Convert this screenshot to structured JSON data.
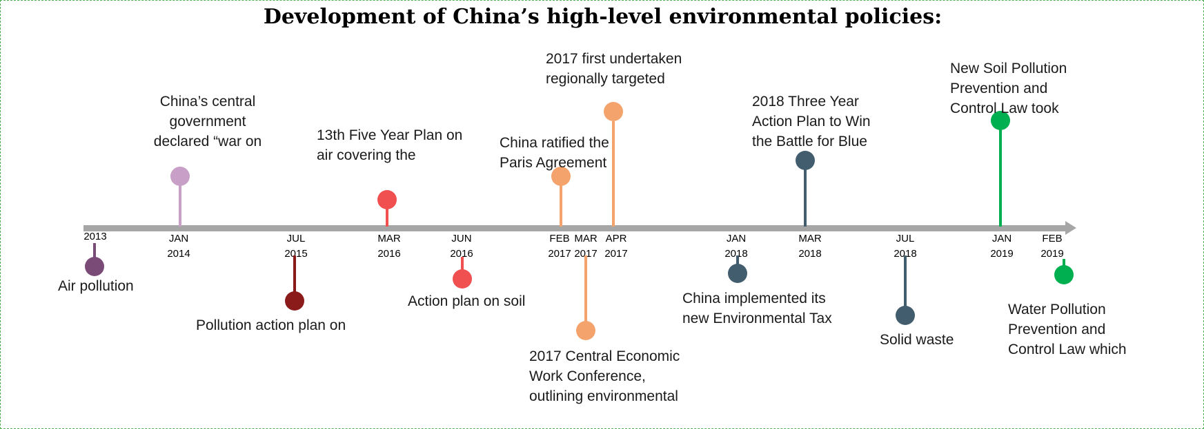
{
  "title": "Development of China’s high-level environmental policies:",
  "colors": {
    "axis": "#a6a6a6",
    "purple_dark": "#7b4b78",
    "lilac": "#c89fc6",
    "maroon": "#8b1b1b",
    "red": "#f05050",
    "orange": "#f4a36c",
    "slate": "#415d6e",
    "green": "#00b050"
  },
  "ticks": [
    {
      "month": "",
      "year": "2013"
    },
    {
      "month": "JAN",
      "year": "2014"
    },
    {
      "month": "JUL",
      "year": "2015"
    },
    {
      "month": "MAR",
      "year": "2016"
    },
    {
      "month": "JUN",
      "year": "2016"
    },
    {
      "month": "FEB",
      "year": "2017"
    },
    {
      "month": "MAR",
      "year": "2017"
    },
    {
      "month": "APR",
      "year": "2017"
    },
    {
      "month": "JAN",
      "year": "2018"
    },
    {
      "month": "MAR",
      "year": "2018"
    },
    {
      "month": "JUL",
      "year": "2018"
    },
    {
      "month": "JAN",
      "year": "2019"
    },
    {
      "month": "FEB",
      "year": "2019"
    }
  ],
  "events": {
    "air_pollution": {
      "lines": [
        "Air pollution"
      ]
    },
    "war_on_pollution": {
      "lines": [
        "China’s central",
        "government",
        "declared “war on"
      ]
    },
    "pollution_action_plan": {
      "lines": [
        "Pollution action plan on"
      ]
    },
    "five_year_plan": {
      "lines": [
        "13th Five Year Plan on",
        "air  covering the"
      ]
    },
    "soil_action_plan": {
      "lines": [
        "Action plan on soil"
      ]
    },
    "paris_agreement": {
      "lines": [
        "China ratified the",
        "Paris Agreement"
      ]
    },
    "economic_conference": {
      "lines": [
        "2017 Central Economic",
        "Work Conference,",
        "outlining environmental"
      ]
    },
    "regional_targeted": {
      "lines": [
        "2017 first undertaken",
        "regionally targeted"
      ]
    },
    "environmental_tax": {
      "lines": [
        "China implemented its",
        "new Environmental Tax"
      ]
    },
    "battle_for_blue": {
      "lines": [
        "2018 Three Year",
        "Action Plan to Win",
        "the Battle for Blue"
      ]
    },
    "solid_waste": {
      "lines": [
        "Solid waste"
      ]
    },
    "soil_law": {
      "lines": [
        "New Soil Pollution",
        "Prevention and",
        "Control Law took"
      ]
    },
    "water_law": {
      "lines": [
        "Water Pollution",
        "Prevention and",
        "Control Law which"
      ]
    }
  }
}
